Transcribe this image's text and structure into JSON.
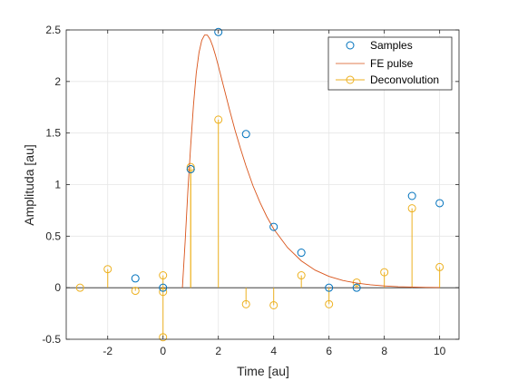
{
  "chart_data": {
    "type": "scatter",
    "xlabel": "Time [au]",
    "ylabel": "Amplituda [au]",
    "xlim": [
      -3.5,
      10.7
    ],
    "ylim": [
      -0.5,
      2.5
    ],
    "xticks": [
      -2,
      0,
      2,
      4,
      6,
      8,
      10
    ],
    "xtick_labels": [
      "-2",
      "0",
      "2",
      "4",
      "6",
      "8",
      "10"
    ],
    "yticks": [
      -0.5,
      0,
      0.5,
      1,
      1.5,
      2,
      2.5
    ],
    "ytick_labels": [
      "-0.5",
      "0",
      "0.5",
      "1",
      "1.5",
      "2",
      "2.5"
    ],
    "grid": true,
    "legend_position": "top-right",
    "legend": [
      "Samples",
      "FE pulse",
      "Deconvolution"
    ],
    "series": [
      {
        "name": "Samples",
        "kind": "markers",
        "color": "#0072bd",
        "x": [
          -1,
          0,
          1,
          2,
          3,
          4,
          5,
          6,
          7,
          9,
          10
        ],
        "y": [
          0.09,
          0.0,
          1.15,
          2.48,
          1.49,
          0.59,
          0.34,
          0.0,
          0.0,
          0.89,
          0.82
        ]
      },
      {
        "name": "FE pulse",
        "kind": "line",
        "color": "#d95319",
        "x": [
          0.7,
          0.8,
          0.9,
          1.0,
          1.1,
          1.2,
          1.3,
          1.4,
          1.5,
          1.6,
          1.7,
          1.8,
          1.9,
          2.0,
          2.2,
          2.4,
          2.6,
          2.8,
          3.0,
          3.25,
          3.5,
          3.75,
          4.0,
          4.5,
          5.0,
          5.5,
          6.0,
          6.5,
          7.0,
          7.5,
          8.0,
          8.5,
          9.0,
          9.5,
          10.0
        ],
        "y": [
          0.0,
          0.45,
          0.95,
          1.38,
          1.77,
          2.08,
          2.28,
          2.4,
          2.45,
          2.45,
          2.41,
          2.34,
          2.25,
          2.15,
          1.94,
          1.73,
          1.53,
          1.35,
          1.18,
          0.99,
          0.83,
          0.69,
          0.57,
          0.39,
          0.26,
          0.17,
          0.11,
          0.07,
          0.045,
          0.028,
          0.017,
          0.01,
          0.006,
          0.003,
          0.002
        ]
      },
      {
        "name": "Deconvolution",
        "kind": "stem",
        "color": "#edb120",
        "x": [
          -3,
          -2,
          -1,
          0,
          0,
          0,
          1,
          1,
          2,
          3,
          4,
          5,
          6,
          7,
          8,
          9,
          10
        ],
        "y": [
          0.0,
          0.18,
          -0.03,
          0.12,
          -0.04,
          -0.48,
          1.17,
          1.15,
          1.63,
          -0.16,
          -0.17,
          0.12,
          -0.16,
          0.05,
          0.15,
          0.77,
          0.2
        ]
      }
    ]
  }
}
